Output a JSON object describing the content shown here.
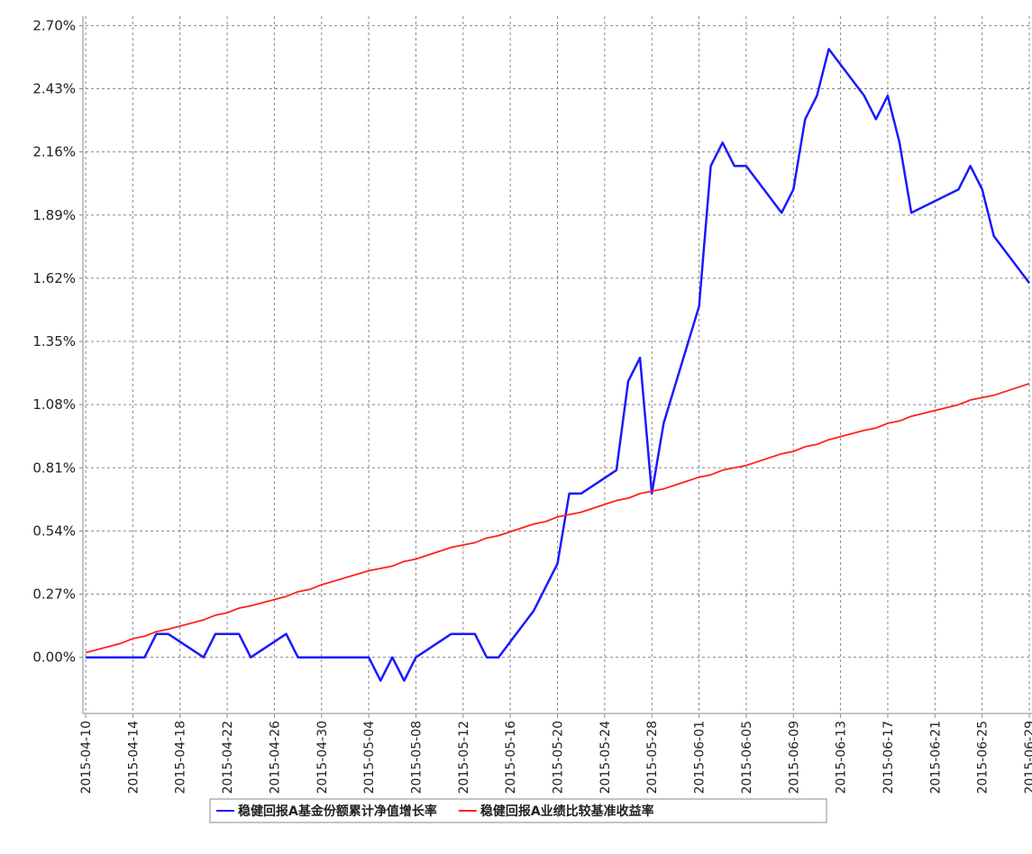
{
  "chart_data": {
    "type": "line",
    "x": [
      "2015-04-10",
      "2015-04-13",
      "2015-04-14",
      "2015-04-15",
      "2015-04-16",
      "2015-04-17",
      "2015-04-20",
      "2015-04-21",
      "2015-04-22",
      "2015-04-23",
      "2015-04-24",
      "2015-04-27",
      "2015-04-28",
      "2015-04-29",
      "2015-04-30",
      "2015-05-04",
      "2015-05-05",
      "2015-05-06",
      "2015-05-07",
      "2015-05-08",
      "2015-05-11",
      "2015-05-12",
      "2015-05-13",
      "2015-05-14",
      "2015-05-15",
      "2015-05-18",
      "2015-05-19",
      "2015-05-20",
      "2015-05-21",
      "2015-05-22",
      "2015-05-25",
      "2015-05-26",
      "2015-05-27",
      "2015-05-28",
      "2015-05-29",
      "2015-06-01",
      "2015-06-02",
      "2015-06-03",
      "2015-06-04",
      "2015-06-05",
      "2015-06-08",
      "2015-06-09",
      "2015-06-10",
      "2015-06-11",
      "2015-06-12",
      "2015-06-15",
      "2015-06-16",
      "2015-06-17",
      "2015-06-18",
      "2015-06-19",
      "2015-06-23",
      "2015-06-24",
      "2015-06-25",
      "2015-06-26",
      "2015-06-29"
    ],
    "series": [
      {
        "name": "稳健回报A基金份额累计净值增长率",
        "color": "#1a1aff",
        "values": [
          0,
          0,
          0,
          0,
          0.1,
          0.1,
          0,
          0.1,
          0.1,
          0.1,
          0,
          0.1,
          0,
          0,
          0,
          0,
          -0.1,
          0,
          -0.1,
          0,
          0.1,
          0.1,
          0.1,
          0,
          0,
          0.2,
          0.3,
          0.4,
          0.7,
          0.7,
          0.8,
          1.18,
          1.28,
          0.7,
          1.0,
          1.5,
          2.1,
          2.2,
          2.1,
          2.1,
          1.9,
          2.0,
          2.3,
          2.4,
          2.6,
          2.4,
          2.3,
          2.4,
          2.2,
          1.9,
          2.0,
          2.1,
          2.0,
          1.8,
          1.6
        ]
      },
      {
        "name": "稳健回报A业绩比较基准收益率",
        "color": "#ff2020",
        "values": [
          0.02,
          0.06,
          0.08,
          0.09,
          0.11,
          0.12,
          0.16,
          0.18,
          0.19,
          0.21,
          0.22,
          0.26,
          0.28,
          0.29,
          0.31,
          0.37,
          0.38,
          0.39,
          0.41,
          0.42,
          0.47,
          0.48,
          0.49,
          0.51,
          0.52,
          0.57,
          0.58,
          0.6,
          0.61,
          0.62,
          0.67,
          0.68,
          0.7,
          0.71,
          0.72,
          0.77,
          0.78,
          0.8,
          0.81,
          0.82,
          0.87,
          0.88,
          0.9,
          0.91,
          0.93,
          0.97,
          0.98,
          1.0,
          1.01,
          1.03,
          1.08,
          1.1,
          1.11,
          1.12,
          1.17
        ]
      }
    ],
    "xlim": [
      "2015-04-10",
      "2015-06-29"
    ],
    "xticks": [
      "2015-04-10",
      "2015-04-14",
      "2015-04-18",
      "2015-04-22",
      "2015-04-26",
      "2015-04-30",
      "2015-05-04",
      "2015-05-08",
      "2015-05-12",
      "2015-05-16",
      "2015-05-20",
      "2015-05-24",
      "2015-05-28",
      "2015-06-01",
      "2015-06-05",
      "2015-06-09",
      "2015-06-13",
      "2015-06-17",
      "2015-06-21",
      "2015-06-25",
      "2015-06-29"
    ],
    "ylim": [
      -0.24,
      2.74
    ],
    "yticks": [
      {
        "value": 0,
        "label": "0.00%"
      },
      {
        "value": 0.27,
        "label": "0.27%"
      },
      {
        "value": 0.54,
        "label": "0.54%"
      },
      {
        "value": 0.81,
        "label": "0.81%"
      },
      {
        "value": 1.08,
        "label": "1.08%"
      },
      {
        "value": 1.35,
        "label": "1.35%"
      },
      {
        "value": 1.62,
        "label": "1.62%"
      },
      {
        "value": 1.89,
        "label": "1.89%"
      },
      {
        "value": 2.16,
        "label": "2.16%"
      },
      {
        "value": 2.43,
        "label": "2.43%"
      },
      {
        "value": 2.7,
        "label": "2.70%"
      }
    ],
    "grid": true,
    "legend": "bottom"
  }
}
